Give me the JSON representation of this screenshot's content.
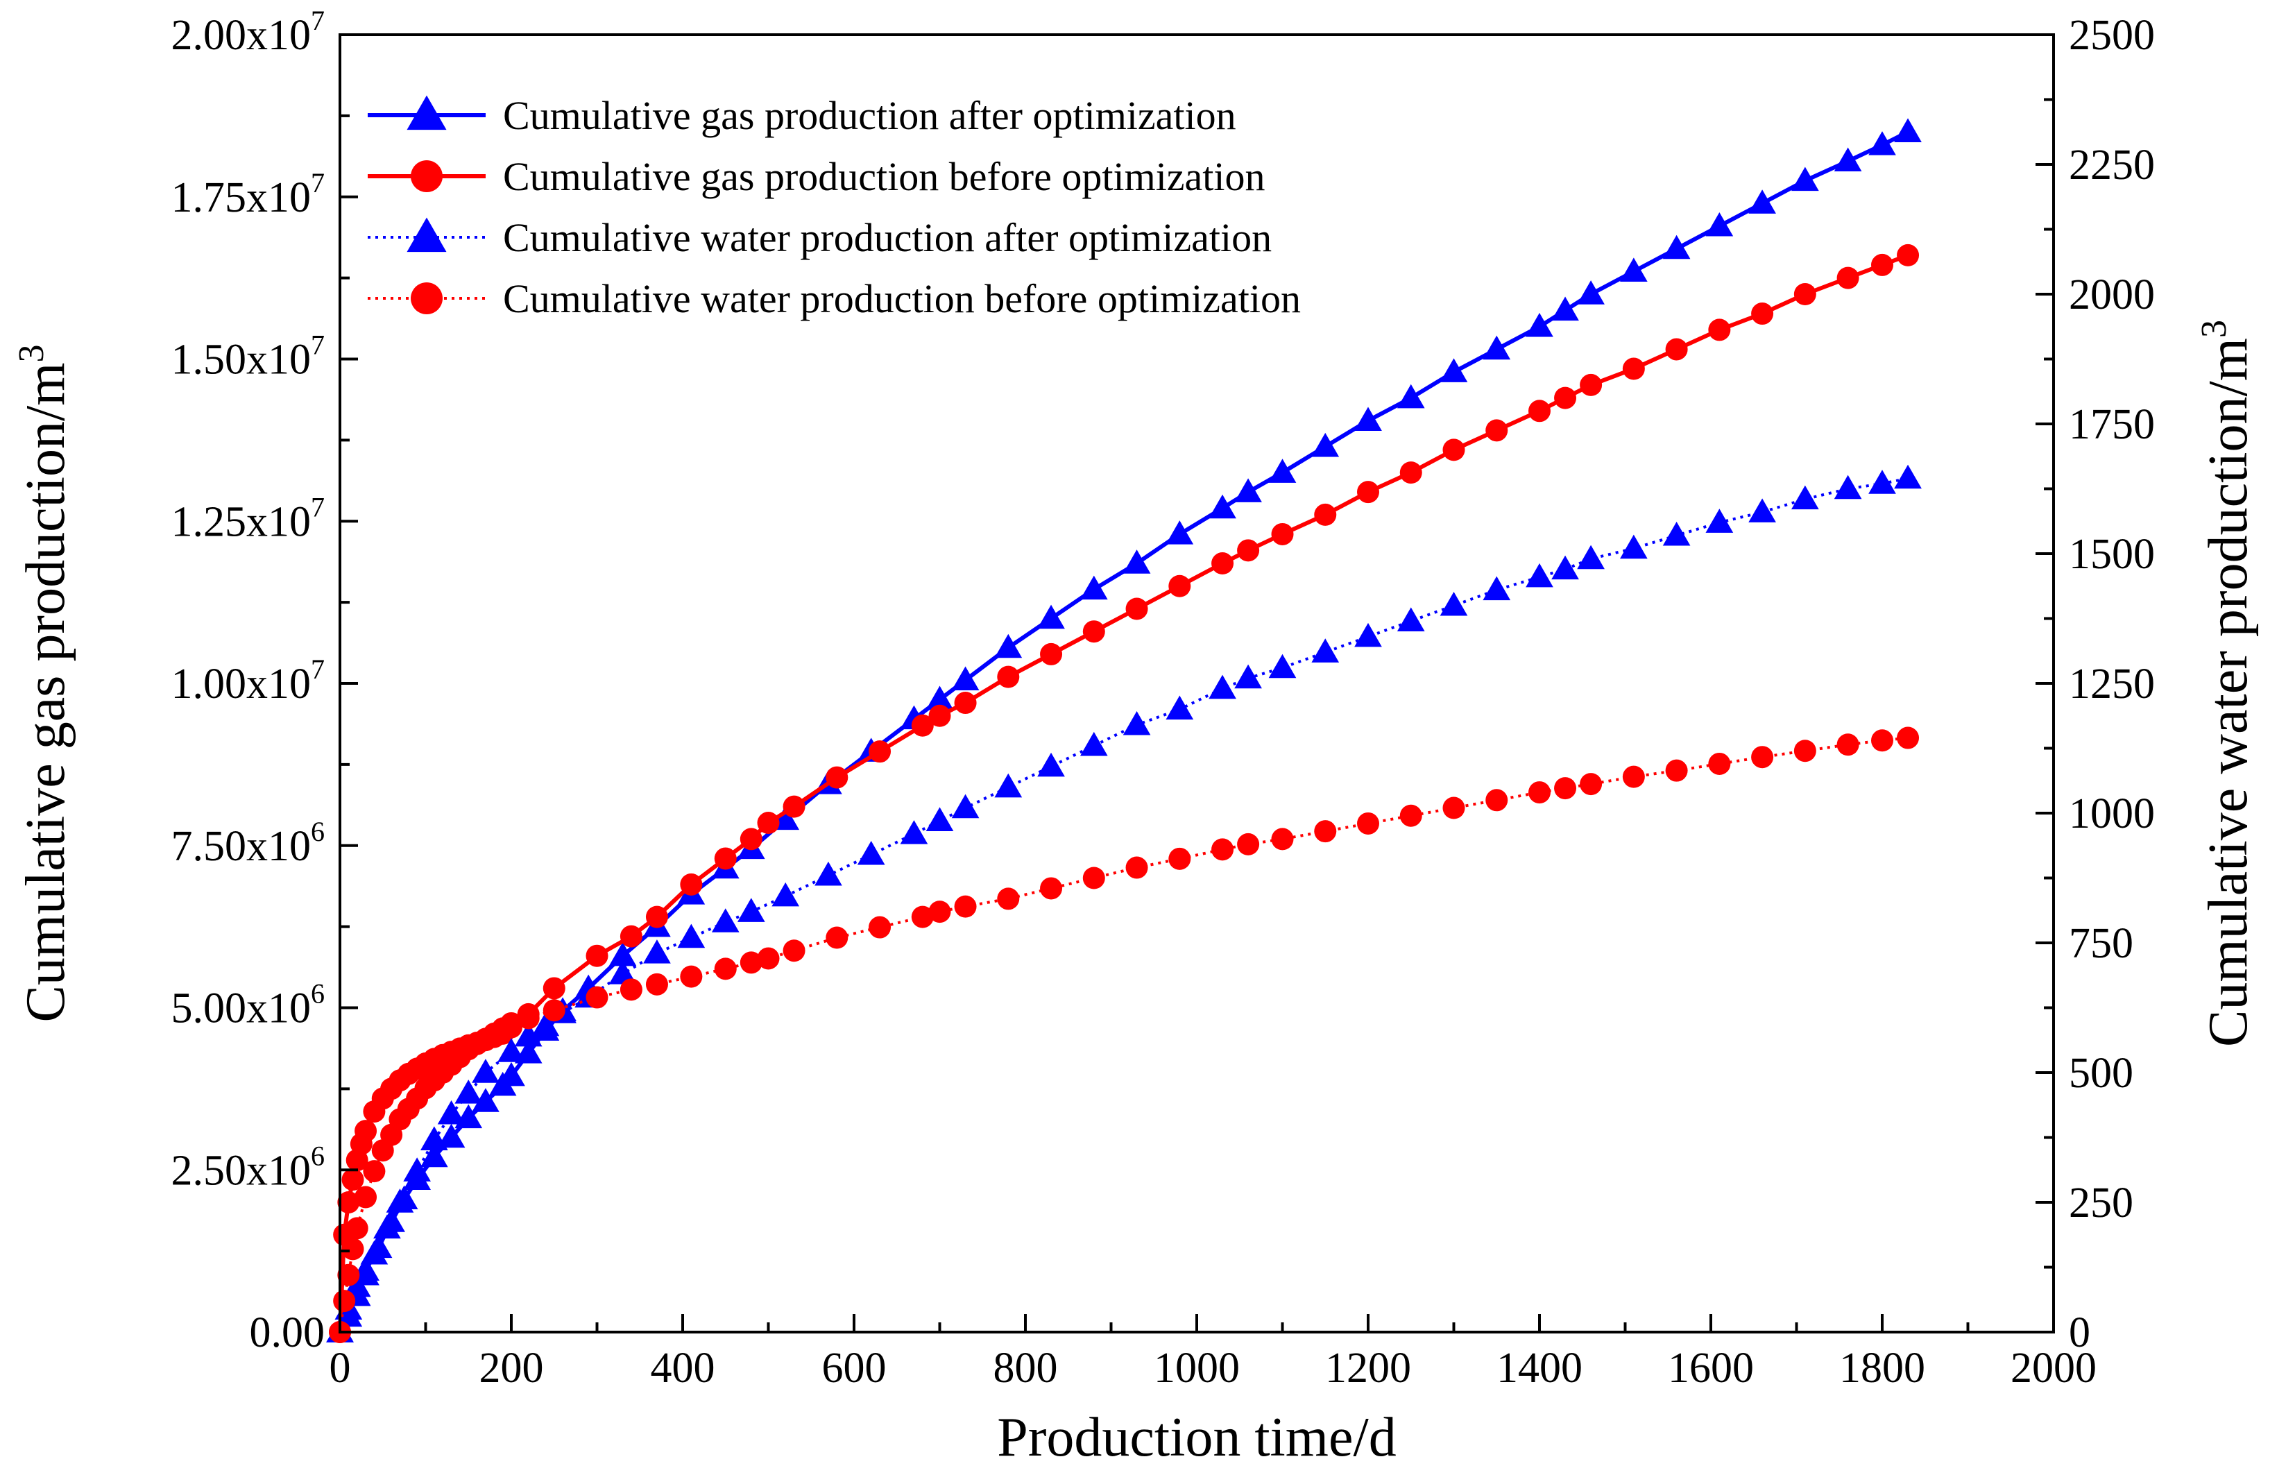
{
  "chart_data": {
    "type": "line",
    "xlabel": "Production time/d",
    "ylabel_left": "Cumulative gas production/m",
    "ylabel_left_sup": "3",
    "ylabel_right": "Cumulative water production/m",
    "ylabel_right_sup": "3",
    "xlim": [
      0,
      2000
    ],
    "ylim_left": [
      0,
      20000000
    ],
    "ylim_right": [
      0,
      2500
    ],
    "x_ticks": [
      "0",
      "200",
      "400",
      "600",
      "800",
      "1000",
      "1200",
      "1400",
      "1600",
      "1800",
      "2000"
    ],
    "y_left_ticks": [
      {
        "mant": "0.00",
        "exp": ""
      },
      {
        "mant": "2.50x10",
        "exp": "6"
      },
      {
        "mant": "5.00x10",
        "exp": "6"
      },
      {
        "mant": "7.50x10",
        "exp": "6"
      },
      {
        "mant": "1.00x10",
        "exp": "7"
      },
      {
        "mant": "1.25x10",
        "exp": "7"
      },
      {
        "mant": "1.50x10",
        "exp": "7"
      },
      {
        "mant": "1.75x10",
        "exp": "7"
      },
      {
        "mant": "2.00x10",
        "exp": "7"
      }
    ],
    "y_right_ticks": [
      "0",
      "250",
      "500",
      "750",
      "1000",
      "1250",
      "1500",
      "1750",
      "2000",
      "2250",
      "2500"
    ],
    "legend_position": "top-left",
    "series": [
      {
        "name": "Cumulative gas production after optimization",
        "axis": "left",
        "color": "#0000ff",
        "marker": "triangle",
        "line": "solid",
        "x": [
          0,
          10,
          20,
          30,
          45,
          60,
          75,
          90,
          110,
          130,
          150,
          170,
          190,
          200,
          220,
          240,
          260,
          290,
          330,
          370,
          410,
          450,
          480,
          520,
          570,
          620,
          670,
          700,
          730,
          780,
          830,
          880,
          930,
          980,
          1030,
          1060,
          1100,
          1150,
          1200,
          1250,
          1300,
          1350,
          1400,
          1430,
          1460,
          1510,
          1560,
          1610,
          1660,
          1710,
          1760,
          1800,
          1830
        ],
        "values": [
          0,
          350000,
          700000,
          950000,
          1300000,
          1700000,
          2050000,
          2350000,
          2700000,
          3000000,
          3300000,
          3550000,
          3800000,
          3950000,
          4300000,
          4650000,
          4950000,
          5300000,
          5800000,
          6250000,
          6750000,
          7150000,
          7450000,
          7900000,
          8450000,
          8950000,
          9450000,
          9750000,
          10050000,
          10550000,
          11000000,
          11450000,
          11850000,
          12300000,
          12700000,
          12950000,
          13250000,
          13650000,
          14050000,
          14400000,
          14800000,
          15150000,
          15500000,
          15750000,
          16000000,
          16350000,
          16700000,
          17050000,
          17400000,
          17750000,
          18050000,
          18300000,
          18500000
        ]
      },
      {
        "name": "Cumulative gas production before optimization",
        "axis": "left",
        "color": "#ff0000",
        "marker": "circle",
        "line": "solid",
        "x": [
          0,
          5,
          10,
          15,
          20,
          25,
          30,
          40,
          50,
          60,
          70,
          80,
          90,
          100,
          110,
          120,
          130,
          140,
          150,
          160,
          170,
          180,
          190,
          200,
          220,
          250,
          300,
          340,
          370,
          410,
          450,
          480,
          500,
          530,
          580,
          630,
          680,
          700,
          730,
          780,
          830,
          880,
          930,
          980,
          1030,
          1060,
          1100,
          1150,
          1200,
          1250,
          1300,
          1350,
          1400,
          1430,
          1460,
          1510,
          1560,
          1610,
          1660,
          1710,
          1760,
          1800,
          1830
        ],
        "values": [
          0,
          1500000,
          2000000,
          2350000,
          2650000,
          2900000,
          3100000,
          3400000,
          3600000,
          3750000,
          3880000,
          3980000,
          4060000,
          4140000,
          4210000,
          4270000,
          4320000,
          4370000,
          4420000,
          4460000,
          4500000,
          4550000,
          4600000,
          4700000,
          4900000,
          5300000,
          5800000,
          6100000,
          6400000,
          6900000,
          7300000,
          7600000,
          7850000,
          8100000,
          8550000,
          8950000,
          9350000,
          9500000,
          9700000,
          10100000,
          10450000,
          10800000,
          11150000,
          11500000,
          11850000,
          12050000,
          12300000,
          12600000,
          12950000,
          13250000,
          13600000,
          13900000,
          14200000,
          14400000,
          14600000,
          14850000,
          15150000,
          15450000,
          15700000,
          16000000,
          16250000,
          16450000,
          16600000
        ]
      },
      {
        "name": "Cumulative water production after optimization",
        "axis": "right",
        "color": "#0000ff",
        "marker": "triangle",
        "line": "dotted",
        "x": [
          0,
          10,
          20,
          30,
          40,
          55,
          70,
          90,
          110,
          130,
          150,
          170,
          200,
          220,
          240,
          260,
          290,
          330,
          370,
          410,
          450,
          480,
          520,
          570,
          620,
          670,
          700,
          730,
          780,
          830,
          880,
          930,
          980,
          1030,
          1060,
          1100,
          1150,
          1200,
          1250,
          1300,
          1350,
          1400,
          1430,
          1460,
          1510,
          1560,
          1610,
          1660,
          1710,
          1760,
          1800,
          1830
        ],
        "values": [
          0,
          30,
          70,
          110,
          150,
          200,
          250,
          310,
          370,
          420,
          460,
          500,
          540,
          570,
          590,
          615,
          645,
          690,
          730,
          760,
          790,
          810,
          840,
          880,
          920,
          960,
          985,
          1010,
          1050,
          1090,
          1130,
          1170,
          1200,
          1240,
          1260,
          1280,
          1310,
          1340,
          1370,
          1400,
          1430,
          1455,
          1470,
          1490,
          1510,
          1535,
          1560,
          1580,
          1605,
          1625,
          1635,
          1645
        ]
      },
      {
        "name": "Cumulative water production before optimization",
        "axis": "right",
        "color": "#ff0000",
        "marker": "circle",
        "line": "dotted",
        "x": [
          0,
          5,
          10,
          15,
          20,
          30,
          40,
          50,
          60,
          70,
          80,
          90,
          100,
          110,
          120,
          130,
          140,
          150,
          160,
          170,
          180,
          190,
          200,
          220,
          250,
          300,
          340,
          370,
          410,
          450,
          480,
          500,
          530,
          580,
          630,
          680,
          700,
          730,
          780,
          830,
          880,
          930,
          980,
          1030,
          1060,
          1100,
          1150,
          1200,
          1250,
          1300,
          1350,
          1400,
          1430,
          1460,
          1510,
          1560,
          1610,
          1660,
          1710,
          1760,
          1800,
          1830
        ],
        "values": [
          0,
          60,
          110,
          160,
          200,
          260,
          310,
          350,
          380,
          410,
          430,
          450,
          470,
          485,
          500,
          515,
          530,
          545,
          555,
          565,
          575,
          585,
          595,
          605,
          620,
          645,
          660,
          670,
          685,
          700,
          712,
          720,
          735,
          760,
          780,
          800,
          810,
          820,
          835,
          855,
          875,
          895,
          912,
          930,
          940,
          950,
          965,
          980,
          995,
          1010,
          1025,
          1040,
          1048,
          1056,
          1070,
          1082,
          1095,
          1108,
          1120,
          1132,
          1140,
          1145
        ]
      }
    ]
  }
}
